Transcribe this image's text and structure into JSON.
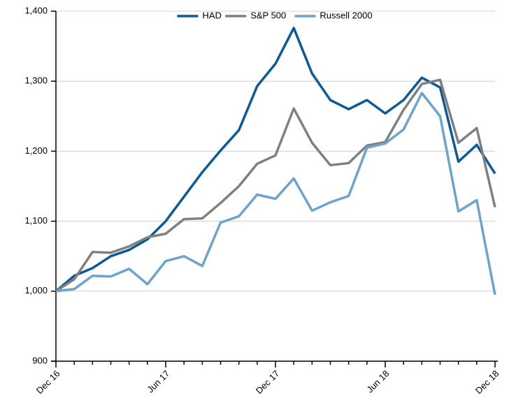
{
  "chart_data": {
    "type": "line",
    "categories": [
      "Dec 16",
      null,
      null,
      null,
      null,
      null,
      "Jun 17",
      null,
      null,
      null,
      null,
      null,
      "Dec 17",
      null,
      null,
      null,
      null,
      null,
      "Jun 18",
      null,
      null,
      null,
      null,
      null,
      "Dec 18"
    ],
    "series": [
      {
        "name": "HAD",
        "color": "#0b5a9a",
        "values": [
          1000,
          1022,
          1033,
          1050,
          1059,
          1074,
          1100,
          1135,
          1170,
          1201,
          1230,
          1293,
          1325,
          1376,
          1311,
          1273,
          1260,
          1273,
          1254,
          1273,
          1305,
          1291,
          1185,
          1209,
          1168
        ]
      },
      {
        "name": "S&P 500",
        "color": "#808080",
        "values": [
          1000,
          1017,
          1056,
          1055,
          1064,
          1077,
          1082,
          1103,
          1104,
          1126,
          1150,
          1182,
          1194,
          1261,
          1212,
          1180,
          1183,
          1208,
          1213,
          1259,
          1296,
          1302,
          1212,
          1233,
          1120
        ]
      },
      {
        "name": "Russell 2000",
        "color": "#6ca4cf",
        "values": [
          1000,
          1003,
          1022,
          1021,
          1032,
          1010,
          1043,
          1050,
          1036,
          1098,
          1107,
          1138,
          1132,
          1161,
          1115,
          1127,
          1136,
          1205,
          1211,
          1231,
          1283,
          1250,
          1114,
          1130,
          995
        ]
      }
    ],
    "ylim": [
      900,
      1400
    ],
    "yticks": [
      {
        "value": 900,
        "label": "900"
      },
      {
        "value": 1000,
        "label": "1,000"
      },
      {
        "value": 1100,
        "label": "1,100"
      },
      {
        "value": 1200,
        "label": "1,200"
      },
      {
        "value": 1300,
        "label": "1,300"
      },
      {
        "value": 1400,
        "label": "1,400"
      }
    ],
    "grid": true,
    "legend": "top"
  }
}
